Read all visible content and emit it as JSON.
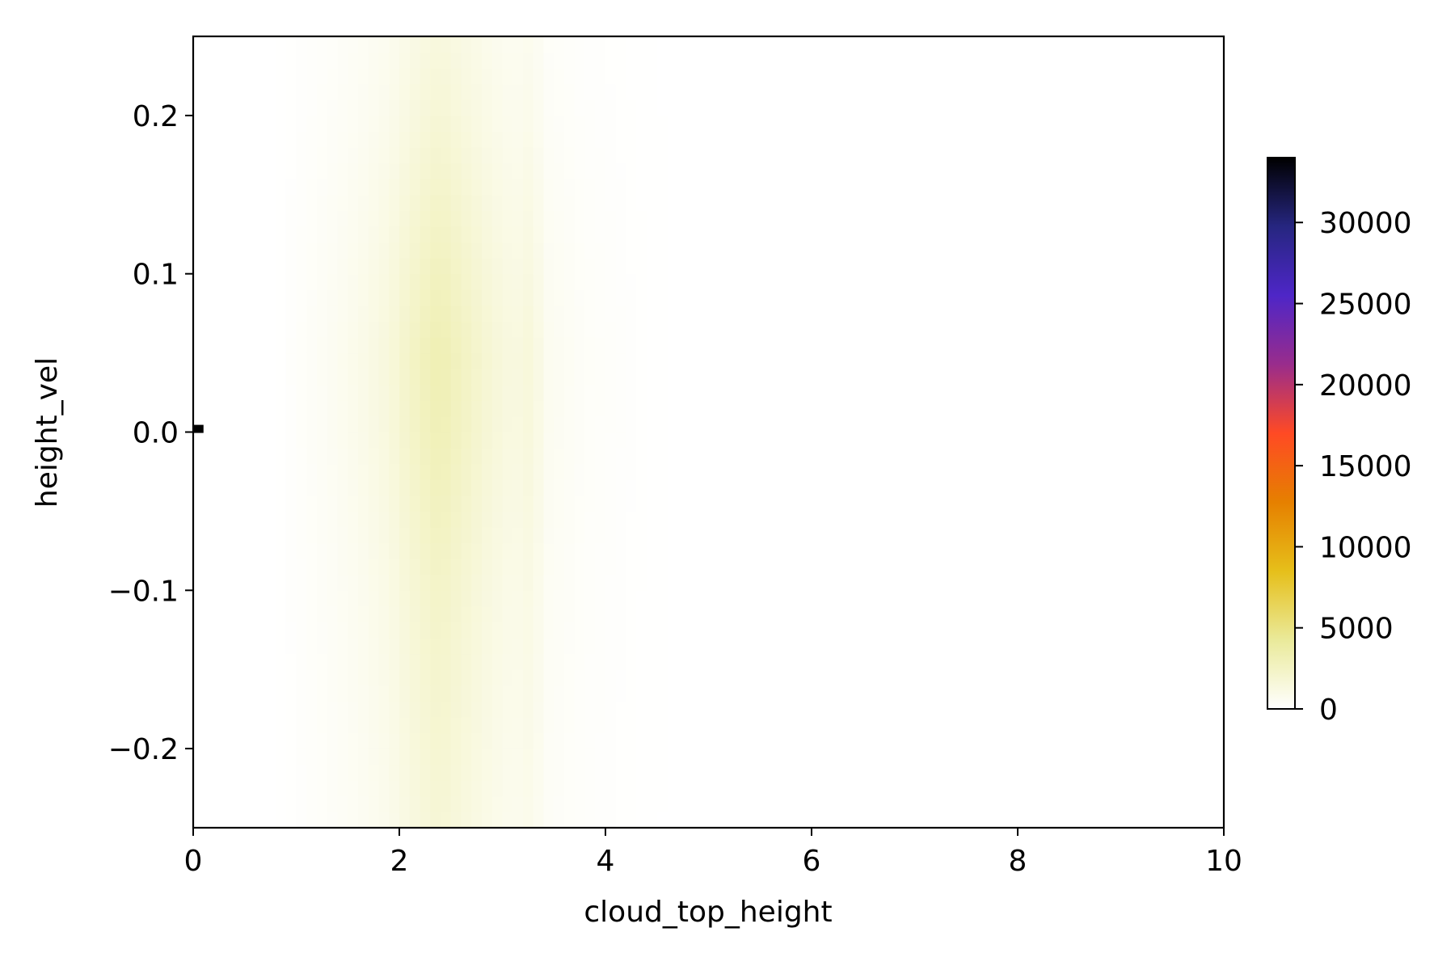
{
  "chart_data": {
    "type": "heatmap",
    "title": "",
    "xlabel": "cloud_top_height",
    "ylabel": "height_vel",
    "xlim": [
      0,
      10
    ],
    "ylim": [
      -0.25,
      0.25
    ],
    "xticks": [
      "0",
      "2",
      "4",
      "6",
      "8",
      "10"
    ],
    "yticks": [
      "−0.2",
      "−0.1",
      "0.0",
      "0.1",
      "0.2"
    ],
    "grid": false,
    "colorbar": {
      "colormap": "CMRmap_r",
      "range": [
        0,
        34000
      ],
      "ticks": [
        "0",
        "5000",
        "10000",
        "15000",
        "20000",
        "25000",
        "30000"
      ],
      "colors": [
        "#ffffff",
        "#eaea9a",
        "#e6bf1a",
        "#e68000",
        "#ff4a24",
        "#992c8c",
        "#4e26c7",
        "#262680",
        "#000000"
      ]
    },
    "density_profile_x": [
      {
        "x": 0.8,
        "count": 0
      },
      {
        "x": 1.0,
        "count": 200
      },
      {
        "x": 1.3,
        "count": 500
      },
      {
        "x": 1.6,
        "count": 900
      },
      {
        "x": 1.9,
        "count": 1500
      },
      {
        "x": 2.1,
        "count": 2300
      },
      {
        "x": 2.3,
        "count": 3000
      },
      {
        "x": 2.4,
        "count": 3200
      },
      {
        "x": 2.6,
        "count": 2600
      },
      {
        "x": 2.9,
        "count": 1700
      },
      {
        "x": 3.1,
        "count": 1300
      },
      {
        "x": 3.3,
        "count": 1600
      },
      {
        "x": 3.4,
        "count": 700
      },
      {
        "x": 3.8,
        "count": 300
      },
      {
        "x": 4.3,
        "count": 100
      },
      {
        "x": 4.7,
        "count": 0
      }
    ],
    "density_profile_y": [
      {
        "y": -0.25,
        "factor": 0.55
      },
      {
        "y": -0.2,
        "factor": 0.6
      },
      {
        "y": -0.1,
        "factor": 0.72
      },
      {
        "y": 0.0,
        "factor": 0.95
      },
      {
        "y": 0.05,
        "factor": 1.0
      },
      {
        "y": 0.1,
        "factor": 0.85
      },
      {
        "y": 0.2,
        "factor": 0.55
      },
      {
        "y": 0.25,
        "factor": 0.45
      }
    ],
    "max_cell": {
      "x": 0.05,
      "y": 0.002,
      "count": 34000
    }
  }
}
